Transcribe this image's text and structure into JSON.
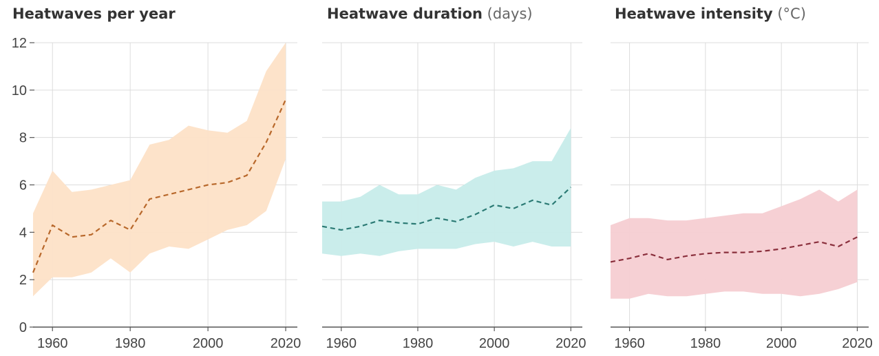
{
  "chart_data": [
    {
      "type": "line",
      "title": "Heatwaves per year",
      "unit": "",
      "x_ticks": [
        1960,
        1980,
        2000,
        2020
      ],
      "y_ticks": [
        0,
        2,
        4,
        6,
        8,
        10,
        12
      ],
      "ylim": [
        0,
        12
      ],
      "xlim": [
        1955,
        2023
      ],
      "grid": true,
      "colors": {
        "band": "#fde2c7",
        "line": "#b8682b"
      },
      "series": [
        {
          "x": [
            1955,
            1960,
            1965,
            1970,
            1975,
            1980,
            1985,
            1990,
            1995,
            2000,
            2005,
            2010,
            2015,
            2020
          ],
          "y": [
            2.3,
            4.3,
            3.8,
            3.9,
            4.5,
            4.1,
            5.4,
            5.6,
            5.8,
            6.0,
            6.1,
            6.4,
            7.8,
            9.6
          ]
        }
      ],
      "band": {
        "x": [
          1955,
          1960,
          1965,
          1970,
          1975,
          1980,
          1985,
          1990,
          1995,
          2000,
          2005,
          2010,
          2015,
          2020
        ],
        "upper": [
          4.8,
          6.6,
          5.7,
          5.8,
          6.0,
          6.2,
          7.7,
          7.9,
          8.5,
          8.3,
          8.2,
          8.7,
          10.8,
          12.0
        ],
        "lower": [
          1.3,
          2.1,
          2.1,
          2.3,
          2.9,
          2.3,
          3.1,
          3.4,
          3.3,
          3.7,
          4.1,
          4.3,
          4.9,
          7.1
        ]
      }
    },
    {
      "type": "line",
      "title": "Heatwave duration",
      "unit": "(days)",
      "x_ticks": [
        1960,
        1980,
        2000,
        2020
      ],
      "ylim": [
        0,
        12
      ],
      "xlim": [
        1955,
        2023
      ],
      "grid": true,
      "colors": {
        "band": "#c7ecea",
        "line": "#2b7a74"
      },
      "series": [
        {
          "x": [
            1955,
            1960,
            1965,
            1970,
            1975,
            1980,
            1985,
            1990,
            1995,
            2000,
            2005,
            2010,
            2015,
            2020
          ],
          "y": [
            4.25,
            4.1,
            4.25,
            4.5,
            4.4,
            4.35,
            4.6,
            4.45,
            4.75,
            5.15,
            5.0,
            5.35,
            5.15,
            5.9
          ]
        }
      ],
      "band": {
        "x": [
          1955,
          1960,
          1965,
          1970,
          1975,
          1980,
          1985,
          1990,
          1995,
          2000,
          2005,
          2010,
          2015,
          2020
        ],
        "upper": [
          5.3,
          5.3,
          5.5,
          6.0,
          5.6,
          5.6,
          6.0,
          5.8,
          6.3,
          6.6,
          6.7,
          7.0,
          7.0,
          8.4
        ],
        "lower": [
          3.1,
          3.0,
          3.1,
          3.0,
          3.2,
          3.3,
          3.3,
          3.3,
          3.5,
          3.6,
          3.4,
          3.6,
          3.4,
          3.4
        ]
      }
    },
    {
      "type": "line",
      "title": "Heatwave intensity",
      "unit": "(°C)",
      "x_ticks": [
        1960,
        1980,
        2000,
        2020
      ],
      "ylim": [
        0,
        12
      ],
      "xlim": [
        1955,
        2023
      ],
      "grid": true,
      "colors": {
        "band": "#f6cdd2",
        "line": "#8a2f3c"
      },
      "series": [
        {
          "x": [
            1955,
            1960,
            1965,
            1970,
            1975,
            1980,
            1985,
            1990,
            1995,
            2000,
            2005,
            2010,
            2015,
            2020
          ],
          "y": [
            2.75,
            2.9,
            3.1,
            2.85,
            3.0,
            3.1,
            3.15,
            3.15,
            3.2,
            3.3,
            3.45,
            3.6,
            3.4,
            3.8
          ]
        }
      ],
      "band": {
        "x": [
          1955,
          1960,
          1965,
          1970,
          1975,
          1980,
          1985,
          1990,
          1995,
          2000,
          2005,
          2010,
          2015,
          2020
        ],
        "upper": [
          4.3,
          4.6,
          4.6,
          4.5,
          4.5,
          4.6,
          4.7,
          4.8,
          4.8,
          5.1,
          5.4,
          5.8,
          5.3,
          5.8
        ],
        "lower": [
          1.2,
          1.2,
          1.4,
          1.3,
          1.3,
          1.4,
          1.5,
          1.5,
          1.4,
          1.4,
          1.3,
          1.4,
          1.6,
          1.9
        ]
      }
    }
  ]
}
